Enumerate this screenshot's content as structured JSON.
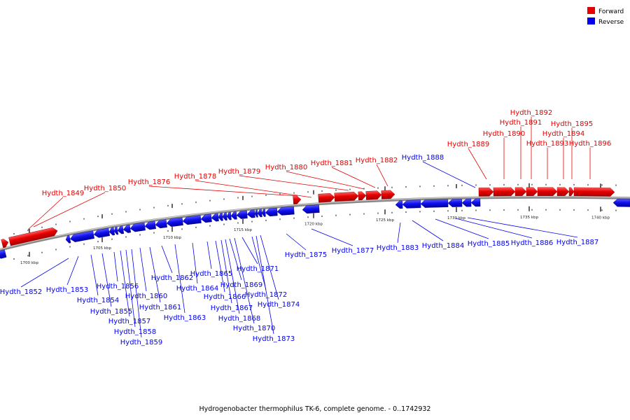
{
  "legend": {
    "forward_label": "Forward",
    "reverse_label": "Reverse",
    "forward_color": "#e60000",
    "reverse_color": "#0000ee"
  },
  "caption": "Hydrogenobacter thermophilus TK-6, complete genome. - 0..1742932",
  "tick_labels": [
    "1700 kbp",
    "1705 kbp",
    "1710 kbp",
    "1715 kbp",
    "1720 kbp",
    "1725 kbp",
    "1730 kbp",
    "1735 kbp",
    "1740 kbp"
  ],
  "forward_genes": [
    "Hydth_1849",
    "Hydth_1850",
    "Hydth_1876",
    "Hydth_1878",
    "Hydth_1879",
    "Hydth_1880",
    "Hydth_1881",
    "Hydth_1882",
    "Hydth_1889",
    "Hydth_1890",
    "Hydth_1891",
    "Hydth_1892",
    "Hydth_1893",
    "Hydth_1894",
    "Hydth_1895",
    "Hydth_1896"
  ],
  "reverse_genes": [
    "Hydth_1852",
    "Hydth_1853",
    "Hydth_1854",
    "Hydth_1855",
    "Hydth_1856",
    "Hydth_1857",
    "Hydth_1858",
    "Hydth_1859",
    "Hydth_1860",
    "Hydth_1861",
    "Hydth_1862",
    "Hydth_1863",
    "Hydth_1864",
    "Hydth_1865",
    "Hydth_1866",
    "Hydth_1867",
    "Hydth_1868",
    "Hydth_1869",
    "Hydth_1870",
    "Hydth_1871",
    "Hydth_1872",
    "Hydth_1873",
    "Hydth_1874",
    "Hydth_1875",
    "Hydth_1877",
    "Hydth_1883",
    "Hydth_1884",
    "Hydth_1885",
    "Hydth_1886",
    "Hydth_1887",
    "Hydth_1888"
  ]
}
